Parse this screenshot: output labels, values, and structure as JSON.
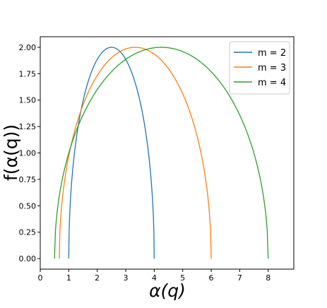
{
  "chart_data": {
    "type": "line",
    "title": "",
    "xlabel": "α(q)",
    "ylabel": "f(α(q))",
    "xlim": [
      0,
      8.9
    ],
    "ylim": [
      -0.1,
      2.1
    ],
    "x_ticks": [
      0,
      1,
      2,
      3,
      4,
      5,
      6,
      7,
      8
    ],
    "y_ticks": [
      0.0,
      0.25,
      0.5,
      0.75,
      1.0,
      1.25,
      1.5,
      1.75,
      2.0
    ],
    "y_tick_labels": [
      "0.00",
      "0.25",
      "0.50",
      "0.75",
      "1.00",
      "1.25",
      "1.50",
      "1.75",
      "2.00"
    ],
    "grid": false,
    "legend": "top-right",
    "series": [
      {
        "name": "m = 2",
        "color": "#1f77b4",
        "alpha_min": 1.0,
        "alpha_max": 4.0,
        "alpha_peak": 2.5,
        "f_max": 2.0
      },
      {
        "name": "m = 3",
        "color": "#ff7f0e",
        "alpha_min": 0.667,
        "alpha_max": 6.0,
        "alpha_peak": 3.33,
        "f_max": 2.0
      },
      {
        "name": "m = 4",
        "color": "#2ca02c",
        "alpha_min": 0.5,
        "alpha_max": 8.0,
        "alpha_peak": 4.25,
        "f_max": 2.0
      }
    ]
  }
}
